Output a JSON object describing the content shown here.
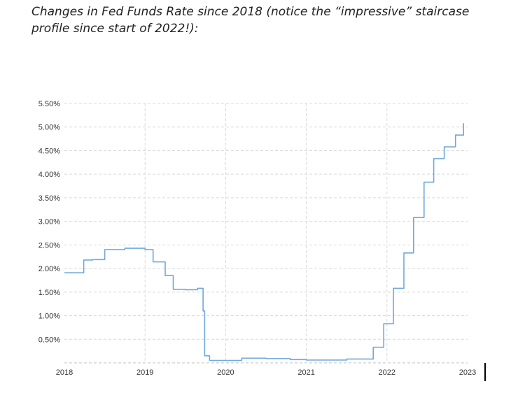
{
  "caption": "Changes in Fed Funds Rate since 2018 (notice the “impressive” staircase profile since start of 2022!):",
  "chart_data": {
    "type": "line",
    "title": "",
    "xlabel": "",
    "ylabel": "",
    "x_ticks": [
      "2018",
      "2019",
      "2020",
      "2021",
      "2022",
      "2023"
    ],
    "y_ticks": [
      "0.50%",
      "1.00%",
      "1.50%",
      "2.00%",
      "2.50%",
      "3.00%",
      "3.50%",
      "4.00%",
      "4.50%",
      "5.00%",
      "5.50%"
    ],
    "xlim": [
      2018.0,
      2023.0
    ],
    "ylim": [
      0,
      5.5
    ],
    "grid": true,
    "line_color": "#6fa8dc",
    "series": [
      {
        "x": [
          2018.0,
          2018.12,
          2018.24,
          2018.35,
          2018.5,
          2018.75,
          2019.0,
          2019.1,
          2019.25,
          2019.35,
          2019.5,
          2019.65,
          2019.72,
          2019.74,
          2019.8,
          2020.2,
          2020.5,
          2020.8,
          2021.0,
          2021.5,
          2021.7,
          2021.83,
          2021.96,
          2022.08,
          2022.21,
          2022.33,
          2022.46,
          2022.58,
          2022.71,
          2022.85,
          2022.95
        ],
        "y": [
          1.91,
          1.91,
          2.18,
          2.19,
          2.4,
          2.43,
          2.4,
          2.14,
          1.85,
          1.56,
          1.55,
          1.58,
          1.1,
          0.15,
          0.05,
          0.1,
          0.09,
          0.07,
          0.06,
          0.08,
          0.08,
          0.33,
          0.83,
          1.58,
          2.33,
          3.08,
          3.83,
          4.33,
          4.58,
          4.83,
          5.08
        ]
      }
    ]
  }
}
